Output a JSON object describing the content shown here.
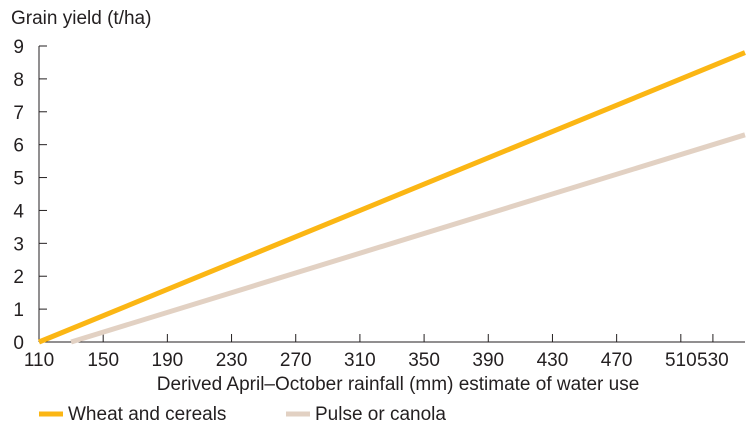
{
  "chart_data": {
    "type": "line",
    "title": "",
    "ylabel": "Grain yield (t/ha)",
    "xlabel": "Derived April–October rainfall (mm) estimate of water use",
    "xlim": [
      110,
      550
    ],
    "ylim": [
      0,
      9
    ],
    "x_ticks": [
      110,
      150,
      190,
      230,
      270,
      310,
      350,
      390,
      430,
      470,
      510,
      530
    ],
    "y_ticks": [
      0,
      1,
      2,
      3,
      4,
      5,
      6,
      7,
      8,
      9
    ],
    "grid": false,
    "legend_position": "bottom-left",
    "series": [
      {
        "name": "Wheat and cereals",
        "color": "#fbb614",
        "points": [
          [
            110,
            0
          ],
          [
            550,
            8.8
          ]
        ]
      },
      {
        "name": "Pulse or canola",
        "color": "#e2d1c3",
        "points": [
          [
            130,
            0
          ],
          [
            550,
            6.3
          ]
        ]
      }
    ]
  }
}
